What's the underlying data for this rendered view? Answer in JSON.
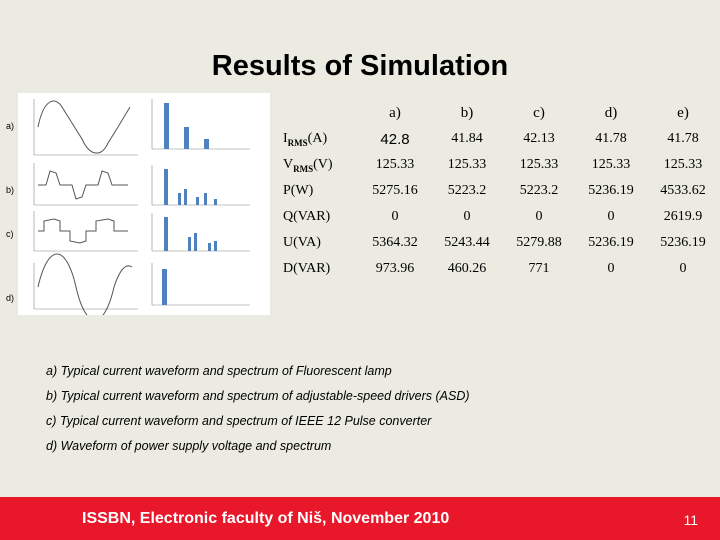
{
  "title": "Results of Simulation",
  "panel_labels": [
    "a)",
    "b)",
    "c)",
    "d)"
  ],
  "table": {
    "columns": [
      "a)",
      "b)",
      "c)",
      "d)",
      "e)"
    ],
    "rows": [
      {
        "label_main": "I",
        "label_sub": "RMS",
        "label_unit": "(A)",
        "values": [
          "42.8",
          "41.84",
          "42.13",
          "41.78",
          "41.78"
        ]
      },
      {
        "label_main": "V",
        "label_sub": "RMS",
        "label_unit": "(V)",
        "values": [
          "125.33",
          "125.33",
          "125.33",
          "125.33",
          "125.33"
        ]
      },
      {
        "label_main": "P(W)",
        "label_sub": "",
        "label_unit": "",
        "values": [
          "5275.16",
          "5223.2",
          "5223.2",
          "5236.19",
          "4533.62"
        ]
      },
      {
        "label_main": "Q(VAR)",
        "label_sub": "",
        "label_unit": "",
        "values": [
          "0",
          "0",
          "0",
          "0",
          "2619.9"
        ]
      },
      {
        "label_main": "U(VA)",
        "label_sub": "",
        "label_unit": "",
        "values": [
          "5364.32",
          "5243.44",
          "5279.88",
          "5236.19",
          "5236.19"
        ]
      },
      {
        "label_main": "D(VAR)",
        "label_sub": "",
        "label_unit": "",
        "values": [
          "973.96",
          "460.26",
          "771",
          "0",
          "0"
        ]
      }
    ]
  },
  "captions": [
    "a) Typical current waveform and spectrum of Fluorescent lamp",
    "b) Typical current waveform and spectrum of adjustable-speed drivers (ASD)",
    "c) Typical current waveform and spectrum of IEEE 12 Pulse converter",
    "d) Waveform of power supply voltage and spectrum"
  ],
  "footer": {
    "text": "ISSBN, Electronic faculty of Niš, November 2010",
    "page_number": "11"
  },
  "colors": {
    "background": "#ebebe1",
    "footer": "#e8172a",
    "bars": "#4f81bd"
  }
}
